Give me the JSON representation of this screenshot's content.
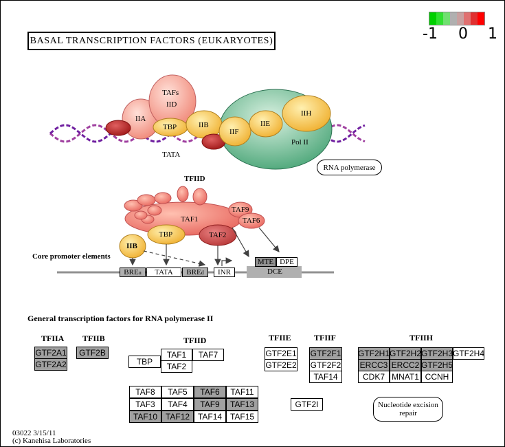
{
  "title": "BASAL TRANSCRIPTION FACTORS (EUKARYOTES)",
  "legend": {
    "colors": [
      "#00d000",
      "#30e030",
      "#70e070",
      "#b0b0b0",
      "#c8a0a0",
      "#e07070",
      "#e03030",
      "#ff0000"
    ],
    "min_label": "-1",
    "mid_label": "0",
    "max_label": "1"
  },
  "complex": {
    "tafs_label": "TAFs",
    "iid_label": "IID",
    "iia_label": "IIA",
    "tbp_label": "TBP",
    "iib_label": "IIB",
    "iif_label": "IIF",
    "iie_label": "IIE",
    "iih_label": "IIH",
    "polii_label": "Pol II",
    "tata_label": "TATA",
    "rna_polymerase_label": "RNA polymerase"
  },
  "tfiid_diagram": {
    "title": "TFIID",
    "taf1": "TAF1",
    "taf9": "TAF9",
    "taf6": "TAF6",
    "tbp": "TBP",
    "taf2": "TAF2",
    "iib": "IIB",
    "core_promoter_label": "Core promoter elements",
    "elements": {
      "breu": "BRE",
      "breu_sup": "u",
      "tata": "TATA",
      "bred": "BRE",
      "bred_sup": "d",
      "inr": "INR",
      "mte": "MTE",
      "dpe": "DPE",
      "dce": "DCE"
    }
  },
  "gtf_section_label": "General transcription factors for RNA polymerase II",
  "groups": {
    "tfiia": {
      "label": "TFIIA",
      "genes": [
        "GTF2A1",
        "GTF2A2"
      ]
    },
    "tfiib": {
      "label": "TFIIB",
      "genes": [
        "GTF2B"
      ]
    },
    "tfiid": {
      "label": "TFIID",
      "tbp": "TBP",
      "top": [
        "TAF1",
        "TAF7"
      ],
      "taf2": "TAF2",
      "grid": [
        [
          "TAF8",
          "TAF5",
          "TAF6",
          "TAF11"
        ],
        [
          "TAF3",
          "TAF4",
          "TAF9",
          "TAF13"
        ],
        [
          "TAF10",
          "TAF12",
          "TAF14",
          "TAF15"
        ]
      ]
    },
    "tfiie": {
      "label": "TFIIE",
      "genes": [
        "GTF2E1",
        "GTF2E2"
      ]
    },
    "tfiif": {
      "label": "TFIIF",
      "genes": [
        "GTF2F1",
        "GTF2F2",
        "TAF14"
      ]
    },
    "gtf2i": "GTF2I",
    "tfiih": {
      "label": "TFIIH",
      "row1": [
        "GTF2H1",
        "GTF2H2",
        "GTF2H3",
        "GTF2H4"
      ],
      "row2": [
        "ERCC3",
        "ERCC2",
        "GTF2H5"
      ],
      "row3": [
        "CDK7",
        "MNAT1",
        "CCNH"
      ]
    },
    "nucleotide_excision": "Nucleotide excision repair"
  },
  "footer": {
    "id_date": "03022 3/15/11",
    "copyright": "(c) Kanehisa Laboratories"
  }
}
